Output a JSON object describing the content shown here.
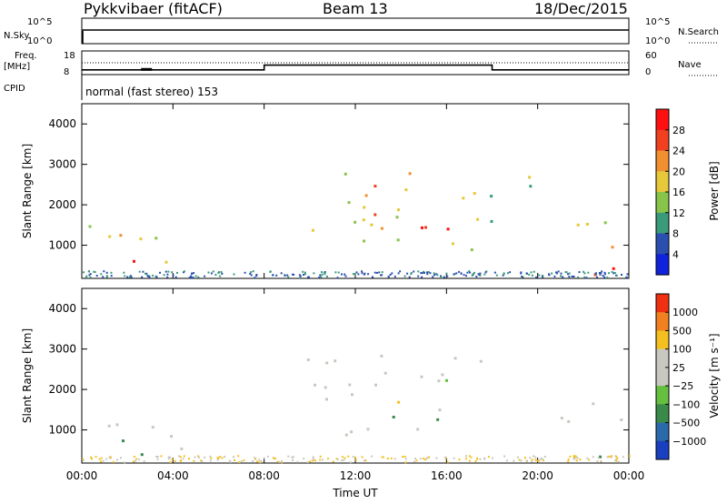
{
  "header": {
    "title": "Pykkvibaer (fitACF)",
    "beam": "Beam 13",
    "date": "18/Dec/2015"
  },
  "chart_data": [
    {
      "type": "line",
      "panel": "noise",
      "left_label": "N.Sky",
      "right_label": "N.Search",
      "left_ticks": [
        "10^5",
        "10^0"
      ],
      "right_ticks": [
        "10^5",
        "10^0"
      ],
      "notes": "N.Sky and N.Search both ~10^5 nearly constant over the day"
    },
    {
      "type": "line",
      "panel": "frequency",
      "left_label_1": "Freq.",
      "left_label_2": "[MHz]",
      "right_label": "Nave",
      "cpid_label": "CPID",
      "left_ticks": [
        "18",
        "8"
      ],
      "right_ticks": [
        "60",
        "0"
      ],
      "ylim_left": [
        8,
        18
      ],
      "ylim_right": [
        0,
        60
      ],
      "x_hours": [
        0,
        8,
        8,
        18,
        18,
        24
      ],
      "freq_mhz": [
        10,
        10,
        12,
        12,
        10,
        10
      ],
      "cpid_text": "normal (fast stereo) 153"
    },
    {
      "type": "heatmap",
      "panel": "power",
      "ylabel": "Slant Range [km]",
      "yticks": [
        "4000",
        "3000",
        "2000",
        "1000"
      ],
      "ylim": [
        180,
        4500
      ],
      "colorbar_label": "Power [dB]",
      "colorbar_ticks": [
        "28",
        "24",
        "20",
        "16",
        "12",
        "8",
        "4"
      ],
      "colors": [
        "#1122dd",
        "#2a4faf",
        "#3a9a7a",
        "#88c44a",
        "#e6c83a",
        "#f09030",
        "#f04020",
        "#ff1010"
      ],
      "regions": [
        {
          "x0": 0.3,
          "x1": 4.4,
          "r0": 300,
          "r1": 1600,
          "center_db": 16
        },
        {
          "x0": 1.0,
          "x1": 2.8,
          "r0": 400,
          "r1": 900,
          "center_db": 26
        },
        {
          "x0": 9.6,
          "x1": 17.8,
          "r0": 800,
          "r1": 3000,
          "center_db": 14
        },
        {
          "x0": 12.5,
          "x1": 16.5,
          "r0": 1300,
          "r1": 2500,
          "center_db": 26
        },
        {
          "x0": 17.9,
          "x1": 19.8,
          "r0": 1200,
          "r1": 2900,
          "center_db": 12
        },
        {
          "x0": 21.0,
          "x1": 24.0,
          "r0": 300,
          "r1": 1700,
          "center_db": 18
        },
        {
          "x0": 21.2,
          "x1": 23.5,
          "r0": 350,
          "r1": 900,
          "center_db": 28
        }
      ]
    },
    {
      "type": "heatmap",
      "panel": "velocity",
      "ylabel": "Slant Range [km]",
      "yticks": [
        "4000",
        "3000",
        "2000",
        "1000"
      ],
      "ylim": [
        180,
        4500
      ],
      "colorbar_label": "Velocity [m s⁻¹]",
      "colorbar_ticks": [
        "1000",
        "500",
        "100",
        "25",
        "−25",
        "−100",
        "−500",
        "−1000"
      ],
      "colors": [
        "#1a3fbf",
        "#2b6aaa",
        "#3a8a4a",
        "#66c040",
        "#c8c8c0",
        "#c8c8c0",
        "#f4c020",
        "#f08020",
        "#f03010"
      ],
      "regions": [
        {
          "x0": 0.3,
          "x1": 4.4,
          "r0": 300,
          "r1": 1600,
          "kind": "grey"
        },
        {
          "x0": 0.4,
          "x1": 2.8,
          "r0": 300,
          "r1": 800,
          "kind": "green"
        },
        {
          "x0": 9.6,
          "x1": 17.8,
          "r0": 800,
          "r1": 3000,
          "kind": "grey"
        },
        {
          "x0": 13.0,
          "x1": 16.0,
          "r0": 1200,
          "r1": 1600,
          "kind": "green"
        },
        {
          "x0": 21.0,
          "x1": 24.0,
          "r0": 300,
          "r1": 1700,
          "kind": "grey"
        },
        {
          "x0": 21.3,
          "x1": 23.5,
          "r0": 350,
          "r1": 800,
          "kind": "green"
        }
      ]
    }
  ],
  "xaxis": {
    "ticks": [
      "00:00",
      "04:00",
      "08:00",
      "12:00",
      "16:00",
      "20:00",
      "00:00"
    ],
    "label": "Time UT"
  }
}
